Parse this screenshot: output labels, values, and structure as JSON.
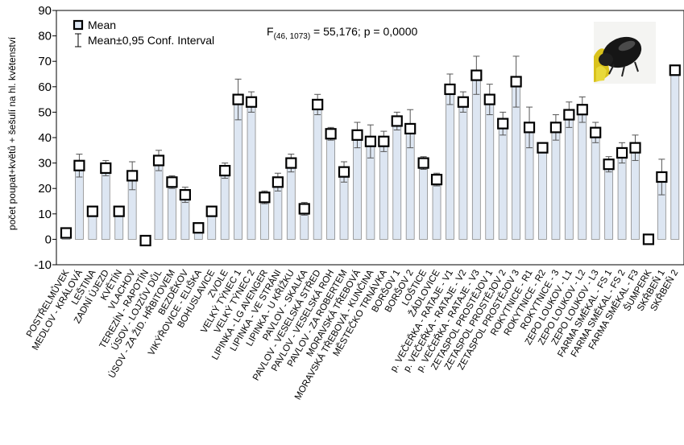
{
  "chart_data": {
    "type": "bar",
    "ylabel": "počet poupat+květů + šešulí na hl. květenství",
    "ylim": [
      -10,
      90
    ],
    "yticks": [
      -10,
      0,
      10,
      20,
      30,
      40,
      50,
      60,
      70,
      80,
      90
    ],
    "legend": {
      "mean": "Mean",
      "ci": "Mean±0,95 Conf. Interval",
      "placement": "top-left"
    },
    "stat": {
      "prefix": "F",
      "sub": "(46, 1073)",
      "rest": " = 55,176; p = 0,0000"
    },
    "image": {
      "subject": "pollen beetle",
      "icon": "beetle-photo"
    },
    "colors": {
      "bar_fill": "#dde6f2",
      "bar_stroke": "#8a8a8a",
      "marker": "#000000"
    },
    "categories": [
      "POSTŘELMŮVEK",
      "MEDLOV - KRÁLOVÁ",
      "LEŠTINA",
      "ZADNÍ ÚJEZD",
      "KVĚTÍN",
      "VLACHOV",
      "TEREZÍN - RAPOTÍN",
      "ÚSOV - LOJZŮV DŮL",
      "ÚSOV - ZA ŽID. HŘBITOVEM",
      "BEZDĚKOV",
      "VIKÝŘOVICE - ELIŠKA",
      "BOHUSLAVICE",
      "ZVOLE",
      "VELKÝ TÝNEC 1",
      "VELKÝ TÝNEC 2",
      "LIPINKA - LG AVENGER",
      "LIPINKA - VE STRÁNI",
      "LIPINKA - U KŘÍŽKU",
      "PAVLOV - SKALKA",
      "PAVLOV - VESELSKÁ STŘED",
      "PAVLOV - VESELSKÁ ROH",
      "PAVLOV - ZA ROBERTEM",
      "MORAVSKÁ TŘEBOVÁ",
      "MORAVSKÁ TŘEBOVÁ - KUNČINA",
      "MĚSTEČKO TRNÁVKA",
      "BORŠOV 1",
      "BORŠOV 2",
      "LOŠTICE",
      "ŽÁDLOVICE",
      "p. VEČEŘKA - RATAJE - V1",
      "p. VEČEŘKA - RATAJE - V2",
      "p. VEČEŘKA - RATAJE - V3",
      "ZETASPOL PROSTĚJOV 1",
      "ZETASPOL PROSTĚJOV 2",
      "ZETASPOL PROSTĚJOV 3",
      "ROKYTNICE - R1",
      "ROKYTNICE - R2",
      "ROKYTNICE - 3",
      "ZEPO LOUKOV - L1",
      "ZEPO LOUKOV - L2",
      "ZEPO LOUKOV - L3",
      "FARMA SMĚKAL - FS 1",
      "FARMA SMĚKAL - FS 2",
      "FARMA SMĚKAL - F3",
      "ŠUMPERK",
      "SKŘBEŇ 1",
      "SKŘBEŇ 2"
    ],
    "values": [
      2.5,
      29,
      11,
      28,
      11,
      25,
      -0.5,
      31,
      22.5,
      17.5,
      4.5,
      11,
      27,
      55,
      54,
      16.5,
      22.5,
      30,
      12,
      53,
      41.5,
      26.5,
      41,
      38.5,
      38.5,
      46.5,
      43.5,
      30,
      23.5,
      59,
      54,
      64.5,
      55,
      45.5,
      62,
      44,
      36,
      44,
      49,
      51,
      42,
      29.5,
      34,
      36,
      0,
      24.5,
      66.5
    ],
    "ci_upper": [
      4,
      33.5,
      13,
      31,
      13,
      30.5,
      0.5,
      35,
      25,
      20.5,
      6,
      13,
      30,
      63,
      58,
      19,
      26,
      33.5,
      14.5,
      57,
      44,
      30.5,
      46,
      45,
      42.5,
      50,
      51,
      32.5,
      26,
      65,
      58,
      72,
      61,
      50,
      72,
      52,
      38,
      49,
      54,
      56,
      46,
      32.5,
      38,
      41,
      0,
      31.5,
      68
    ],
    "ci_lower": [
      1,
      24.5,
      9,
      25,
      9,
      19.5,
      -1.5,
      27,
      20,
      14.5,
      3,
      9,
      24,
      47,
      50,
      14,
      19,
      26.5,
      9.5,
      49,
      39,
      22.5,
      36,
      32,
      34.5,
      43,
      36,
      27.5,
      21,
      53,
      50,
      57,
      49,
      41,
      52,
      36,
      34,
      39,
      44,
      46,
      38,
      26.5,
      30,
      31,
      0,
      17.5,
      65
    ]
  }
}
